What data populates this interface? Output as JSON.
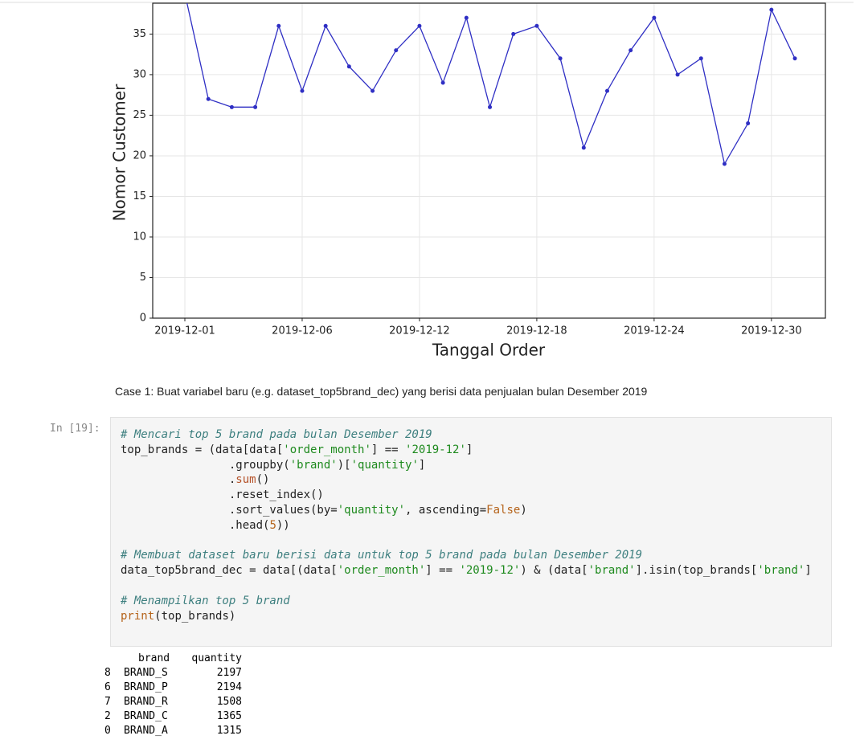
{
  "chart_data": {
    "type": "line",
    "xlabel": "Tanggal Order",
    "ylabel": "Nomor Customer",
    "categories": [
      "2019-12-01",
      null,
      null,
      null,
      null,
      "2019-12-06",
      null,
      null,
      null,
      null,
      "2019-12-12",
      null,
      null,
      null,
      null,
      "2019-12-18",
      null,
      null,
      null,
      null,
      "2019-12-24",
      null,
      null,
      null,
      null,
      "2019-12-30",
      null
    ],
    "values": [
      40,
      27,
      26,
      26,
      36,
      28,
      36,
      31,
      28,
      33,
      36,
      29,
      37,
      26,
      35,
      36,
      32,
      21,
      28,
      33,
      37,
      30,
      32,
      19,
      24,
      38,
      32
    ],
    "color": "#2f2fc4",
    "marker": true,
    "ylim": [
      0,
      38.8
    ],
    "yticks": [
      0,
      5,
      10,
      15,
      20,
      25,
      30,
      35
    ],
    "grid": true
  },
  "markdown": "Case 1: Buat variabel baru (e.g. dataset_top5brand_dec) yang berisi data penjualan bulan Desember 2019",
  "cell": {
    "prompt": "In [19]:",
    "code": [
      [
        {
          "t": "# Mencari top 5 brand pada bulan Desember 2019",
          "c": "#3d7f7f",
          "i": true
        }
      ],
      [
        {
          "t": "top_brands = (data[data[",
          "c": "#222"
        },
        {
          "t": "'order_month'",
          "c": "#1e8a1e"
        },
        {
          "t": "] == ",
          "c": "#222"
        },
        {
          "t": "'2019-12'",
          "c": "#1e8a1e"
        },
        {
          "t": "]",
          "c": "#222"
        }
      ],
      [
        {
          "t": "                .groupby(",
          "c": "#222"
        },
        {
          "t": "'brand'",
          "c": "#1e8a1e"
        },
        {
          "t": ")[",
          "c": "#222"
        },
        {
          "t": "'quantity'",
          "c": "#1e8a1e"
        },
        {
          "t": "]",
          "c": "#222"
        }
      ],
      [
        {
          "t": "                .",
          "c": "#222"
        },
        {
          "t": "sum",
          "c": "#b5532a"
        },
        {
          "t": "()",
          "c": "#222"
        }
      ],
      [
        {
          "t": "                .reset_index()",
          "c": "#222"
        }
      ],
      [
        {
          "t": "                .sort_values(by=",
          "c": "#222"
        },
        {
          "t": "'quantity'",
          "c": "#1e8a1e"
        },
        {
          "t": ", ascending=",
          "c": "#222"
        },
        {
          "t": "False",
          "c": "#b5631a"
        },
        {
          "t": ")",
          "c": "#222"
        }
      ],
      [
        {
          "t": "                .head(",
          "c": "#222"
        },
        {
          "t": "5",
          "c": "#b5631a"
        },
        {
          "t": "))",
          "c": "#222"
        }
      ],
      null,
      [
        {
          "t": "# Membuat dataset baru berisi data untuk top 5 brand pada bulan Desember 2019",
          "c": "#3d7f7f",
          "i": true
        }
      ],
      [
        {
          "t": "data_top5brand_dec = data[(data[",
          "c": "#222"
        },
        {
          "t": "'order_month'",
          "c": "#1e8a1e"
        },
        {
          "t": "] == ",
          "c": "#222"
        },
        {
          "t": "'2019-12'",
          "c": "#1e8a1e"
        },
        {
          "t": ") & (data[",
          "c": "#222"
        },
        {
          "t": "'brand'",
          "c": "#1e8a1e"
        },
        {
          "t": "].isin(top_brands[",
          "c": "#222"
        },
        {
          "t": "'brand'",
          "c": "#1e8a1e"
        },
        {
          "t": "]",
          "c": "#222"
        }
      ],
      null,
      [
        {
          "t": "# Menampilkan top 5 brand",
          "c": "#3d7f7f",
          "i": true
        }
      ],
      [
        {
          "t": "print",
          "c": "#b5631a"
        },
        {
          "t": "(top_brands)",
          "c": "#222"
        }
      ]
    ]
  },
  "output": {
    "header": [
      "brand",
      "quantity"
    ],
    "rows": [
      [
        8,
        "BRAND_S",
        2197
      ],
      [
        6,
        "BRAND_P",
        2194
      ],
      [
        7,
        "BRAND_R",
        1508
      ],
      [
        2,
        "BRAND_C",
        1365
      ],
      [
        0,
        "BRAND_A",
        1315
      ]
    ]
  }
}
